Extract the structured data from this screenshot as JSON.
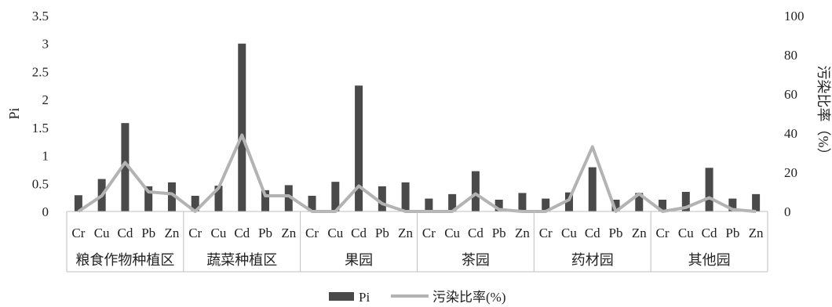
{
  "chart_data": {
    "type": "bar",
    "groups": [
      "粮食作物种植区",
      "蔬菜种植区",
      "果园",
      "茶园",
      "药材园",
      "其他园"
    ],
    "elements": [
      "Cr",
      "Cu",
      "Cd",
      "Pb",
      "Zn"
    ],
    "ylabel": "Pi",
    "y2label": "污染比率（%）",
    "ylim": [
      0,
      3.5
    ],
    "y2lim": [
      0,
      100
    ],
    "yticks": [
      "0",
      "0.5",
      "1",
      "1.5",
      "2",
      "2.5",
      "3",
      "3.5"
    ],
    "y2ticks": [
      "0",
      "20",
      "40",
      "60",
      "80",
      "100"
    ],
    "legend": {
      "position": "bottom",
      "bar_label": "Pi",
      "line_label": "污染比率(%)"
    },
    "series": [
      {
        "name": "Pi",
        "kind": "bar",
        "color": "#4a4a4a",
        "values": [
          0.29,
          0.58,
          1.58,
          0.45,
          0.52,
          0.28,
          0.46,
          3.0,
          0.38,
          0.47,
          0.28,
          0.53,
          2.25,
          0.45,
          0.52,
          0.23,
          0.31,
          0.72,
          0.21,
          0.33,
          0.23,
          0.34,
          0.79,
          0.21,
          0.33,
          0.21,
          0.35,
          0.78,
          0.23,
          0.31
        ]
      },
      {
        "name": "污染比率(%)",
        "kind": "line",
        "axis": "right",
        "color": "#b3b3b3",
        "values": [
          0,
          8,
          25,
          10,
          9,
          0,
          12,
          39,
          8,
          8,
          0,
          0,
          13,
          4,
          0,
          0,
          0,
          9,
          1,
          0,
          0,
          6,
          33,
          0,
          9,
          0,
          2,
          7,
          1,
          0
        ]
      }
    ]
  }
}
